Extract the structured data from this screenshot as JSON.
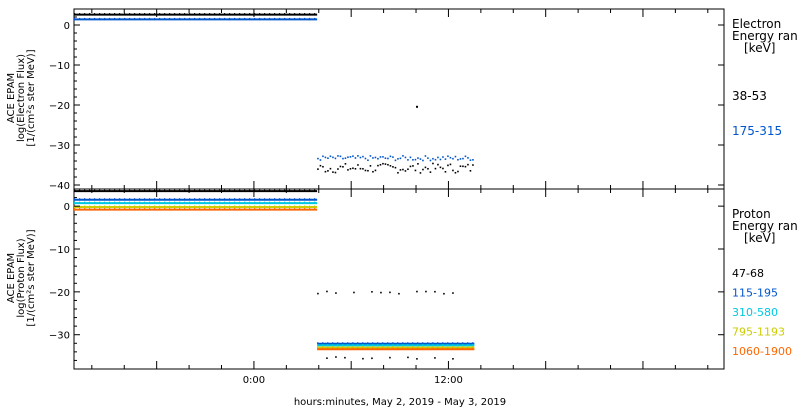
{
  "xaxis_label": "hours:minutes, May  2, 2019 - May  3, 2019",
  "chart_data": [
    {
      "type": "scatter",
      "panel": "electron",
      "ylabel_lines": [
        "ACE EPAM",
        "log(Electron Flux)",
        "[1/(cm²s ster MeV)]"
      ],
      "ylim": [
        -41,
        4
      ],
      "yticks": [
        0,
        -10,
        -20,
        -30,
        -40
      ],
      "xticks": [
        "0:00",
        "12:00"
      ],
      "legend": {
        "title_lines": [
          "Electron",
          "Energy ran",
          "[keV]"
        ],
        "placement": "right"
      },
      "series": [
        {
          "name": "38-53",
          "color": "#000000",
          "segments": [
            {
              "x": [
                -11.1,
                3.9
              ],
              "y": 2.6
            },
            {
              "x": [
                3.9,
                13.6
              ],
              "y": -35.6,
              "spread": 1.2
            }
          ],
          "outliers": [
            {
              "x": 10.0,
              "y": -20.2
            }
          ]
        },
        {
          "name": "175-315",
          "color": "#0055cc",
          "segments": [
            {
              "x": [
                -11.1,
                3.9
              ],
              "y": 1.4
            },
            {
              "x": [
                3.9,
                13.6
              ],
              "y": -33.1,
              "spread": 0.6
            }
          ]
        }
      ]
    },
    {
      "type": "scatter",
      "panel": "proton",
      "ylabel_lines": [
        "ACE EPAM",
        "log(Proton Flux)",
        "[1/(cm²s ster MeV)]"
      ],
      "ylim": [
        -38,
        4
      ],
      "yticks": [
        0,
        -10,
        -20,
        -30
      ],
      "xticks": [
        "0:00",
        "12:00"
      ],
      "legend": {
        "title_lines": [
          "Proton",
          "Energy ran",
          "[keV]"
        ],
        "placement": "right"
      },
      "series": [
        {
          "name": "47-68",
          "color": "#000000",
          "segments": [
            {
              "x": [
                -11.1,
                3.9
              ],
              "y": 3.5
            },
            {
              "x": [
                3.9,
                13.6
              ],
              "y": -20.0,
              "sparse": true
            },
            {
              "x": [
                3.9,
                13.6
              ],
              "y": -35.2,
              "sparse": true
            }
          ]
        },
        {
          "name": "115-195",
          "color": "#0055cc",
          "segments": [
            {
              "x": [
                -11.1,
                3.9
              ],
              "y": 1.5
            },
            {
              "x": [
                3.9,
                13.6
              ],
              "y": -32.1
            }
          ]
        },
        {
          "name": "310-580",
          "color": "#00c8e0",
          "segments": [
            {
              "x": [
                -11.1,
                3.9
              ],
              "y": 0.7
            },
            {
              "x": [
                3.9,
                13.6
              ],
              "y": -32.5
            }
          ]
        },
        {
          "name": "795-1193",
          "color": "#cccc00",
          "segments": [
            {
              "x": [
                -11.1,
                3.9
              ],
              "y": -0.2
            },
            {
              "x": [
                3.9,
                13.6
              ],
              "y": -33.0
            }
          ]
        },
        {
          "name": "1060-1900",
          "color": "#ff6600",
          "segments": [
            {
              "x": [
                -11.1,
                3.9
              ],
              "y": -0.8
            },
            {
              "x": [
                3.9,
                13.6
              ],
              "y": -33.4
            }
          ]
        }
      ]
    }
  ]
}
